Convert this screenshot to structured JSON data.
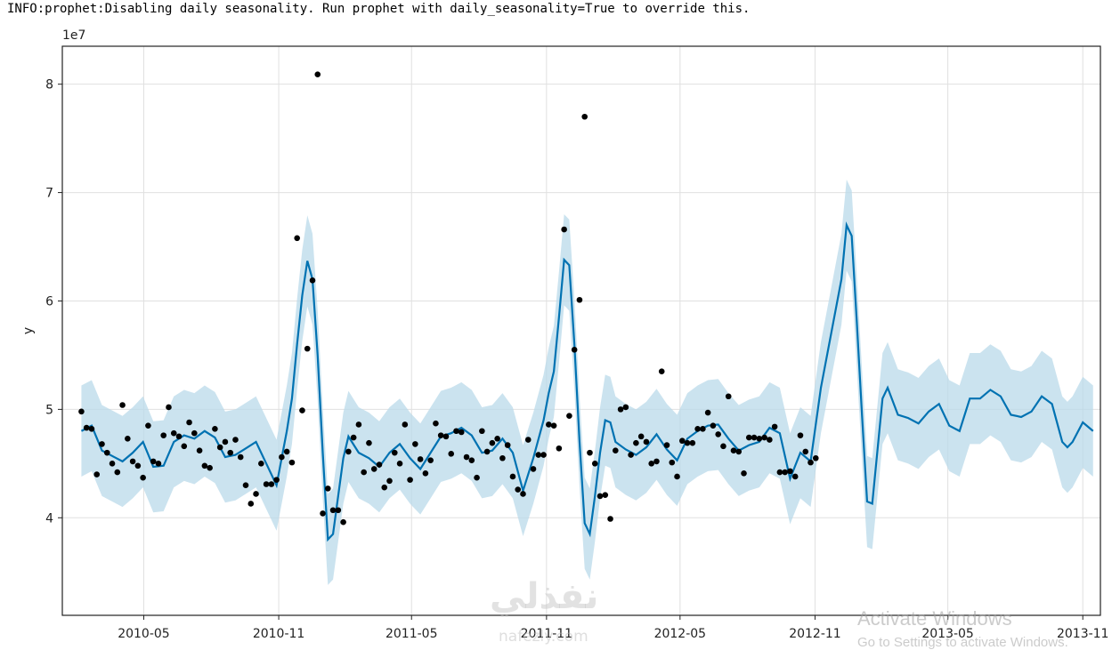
{
  "console": {
    "message": "INFO:prophet:Disabling daily seasonality. Run prophet with daily_seasonality=True to override this."
  },
  "watermark": {
    "activate_title": "Activate Windows",
    "activate_sub": "Go to Settings to activate Windows.",
    "logo_text": "نفذلي",
    "logo_url": "nafezly.com"
  },
  "colors": {
    "forecast_line": "#0072B2",
    "interval_fill": "#b9d9ea",
    "points": "#000000",
    "grid": "#e0e0e0"
  },
  "chart_data": {
    "type": "line",
    "ylabel": "y",
    "y_multiplier_label": "1e7",
    "ylim": [
      3.1,
      8.35
    ],
    "yticks": [
      4,
      5,
      6,
      7,
      8
    ],
    "xlim": [
      "2010-01-10",
      "2013-11-25"
    ],
    "xticks": [
      {
        "date": "2010-05-01",
        "label": "2010-05"
      },
      {
        "date": "2010-11-01",
        "label": "2010-11"
      },
      {
        "date": "2011-05-01",
        "label": "2011-05"
      },
      {
        "date": "2011-11-01",
        "label": "2011-11"
      },
      {
        "date": "2012-05-01",
        "label": "2012-05"
      },
      {
        "date": "2012-11-01",
        "label": "2012-11"
      },
      {
        "date": "2013-05-01",
        "label": "2013-05"
      },
      {
        "date": "2013-11-01",
        "label": "2013-11"
      }
    ],
    "grid": true,
    "series": [
      {
        "kind": "forecast",
        "points": [
          [
            "2010-02-05",
            4.8
          ],
          [
            "2010-02-19",
            4.85
          ],
          [
            "2010-03-05",
            4.62
          ],
          [
            "2010-03-19",
            4.57
          ],
          [
            "2010-04-02",
            4.52
          ],
          [
            "2010-04-16",
            4.6
          ],
          [
            "2010-04-30",
            4.7
          ],
          [
            "2010-05-14",
            4.47
          ],
          [
            "2010-05-28",
            4.48
          ],
          [
            "2010-06-11",
            4.7
          ],
          [
            "2010-06-25",
            4.76
          ],
          [
            "2010-07-09",
            4.73
          ],
          [
            "2010-07-23",
            4.8
          ],
          [
            "2010-08-06",
            4.74
          ],
          [
            "2010-08-20",
            4.56
          ],
          [
            "2010-09-03",
            4.58
          ],
          [
            "2010-09-17",
            4.64
          ],
          [
            "2010-10-01",
            4.7
          ],
          [
            "2010-10-15",
            4.5
          ],
          [
            "2010-10-29",
            4.3
          ],
          [
            "2010-11-12",
            4.8
          ],
          [
            "2010-11-19",
            5.1
          ],
          [
            "2010-11-26",
            5.6
          ],
          [
            "2010-12-03",
            6.05
          ],
          [
            "2010-12-10",
            6.37
          ],
          [
            "2010-12-17",
            6.2
          ],
          [
            "2010-12-24",
            5.5
          ],
          [
            "2010-12-31",
            4.6
          ],
          [
            "2011-01-07",
            3.8
          ],
          [
            "2011-01-14",
            3.85
          ],
          [
            "2011-01-21",
            4.2
          ],
          [
            "2011-01-28",
            4.55
          ],
          [
            "2011-02-04",
            4.75
          ],
          [
            "2011-02-18",
            4.6
          ],
          [
            "2011-03-04",
            4.55
          ],
          [
            "2011-03-18",
            4.47
          ],
          [
            "2011-04-01",
            4.6
          ],
          [
            "2011-04-15",
            4.68
          ],
          [
            "2011-04-29",
            4.55
          ],
          [
            "2011-05-13",
            4.45
          ],
          [
            "2011-05-27",
            4.6
          ],
          [
            "2011-06-10",
            4.75
          ],
          [
            "2011-06-24",
            4.78
          ],
          [
            "2011-07-08",
            4.83
          ],
          [
            "2011-07-22",
            4.76
          ],
          [
            "2011-08-05",
            4.6
          ],
          [
            "2011-08-19",
            4.62
          ],
          [
            "2011-09-02",
            4.73
          ],
          [
            "2011-09-16",
            4.6
          ],
          [
            "2011-09-30",
            4.25
          ],
          [
            "2011-10-14",
            4.55
          ],
          [
            "2011-10-28",
            4.9
          ],
          [
            "2011-11-04",
            5.15
          ],
          [
            "2011-11-11",
            5.35
          ],
          [
            "2011-11-18",
            5.85
          ],
          [
            "2011-11-25",
            6.38
          ],
          [
            "2011-12-02",
            6.33
          ],
          [
            "2011-12-09",
            5.6
          ],
          [
            "2011-12-16",
            4.7
          ],
          [
            "2011-12-23",
            3.95
          ],
          [
            "2011-12-30",
            3.85
          ],
          [
            "2012-01-06",
            4.2
          ],
          [
            "2012-01-13",
            4.6
          ],
          [
            "2012-01-20",
            4.9
          ],
          [
            "2012-01-27",
            4.88
          ],
          [
            "2012-02-03",
            4.7
          ],
          [
            "2012-02-17",
            4.63
          ],
          [
            "2012-03-02",
            4.58
          ],
          [
            "2012-03-16",
            4.65
          ],
          [
            "2012-03-30",
            4.77
          ],
          [
            "2012-04-13",
            4.63
          ],
          [
            "2012-04-27",
            4.53
          ],
          [
            "2012-05-11",
            4.73
          ],
          [
            "2012-05-25",
            4.8
          ],
          [
            "2012-06-08",
            4.85
          ],
          [
            "2012-06-22",
            4.86
          ],
          [
            "2012-07-06",
            4.73
          ],
          [
            "2012-07-20",
            4.62
          ],
          [
            "2012-08-03",
            4.67
          ],
          [
            "2012-08-17",
            4.7
          ],
          [
            "2012-08-31",
            4.83
          ],
          [
            "2012-09-14",
            4.78
          ],
          [
            "2012-09-28",
            4.36
          ],
          [
            "2012-10-12",
            4.6
          ],
          [
            "2012-10-26",
            4.52
          ],
          [
            "2012-11-09",
            5.2
          ],
          [
            "2012-11-23",
            5.7
          ],
          [
            "2012-12-07",
            6.2
          ],
          [
            "2012-12-14",
            6.7
          ],
          [
            "2012-12-21",
            6.6
          ],
          [
            "2012-12-28",
            5.8
          ],
          [
            "2013-01-04",
            4.95
          ],
          [
            "2013-01-11",
            4.15
          ],
          [
            "2013-01-18",
            4.13
          ],
          [
            "2013-02-01",
            5.1
          ],
          [
            "2013-02-08",
            5.2
          ],
          [
            "2013-02-22",
            4.95
          ],
          [
            "2013-03-08",
            4.92
          ],
          [
            "2013-03-22",
            4.87
          ],
          [
            "2013-04-05",
            4.98
          ],
          [
            "2013-04-19",
            5.05
          ],
          [
            "2013-05-03",
            4.85
          ],
          [
            "2013-05-17",
            4.8
          ],
          [
            "2013-05-31",
            5.1
          ],
          [
            "2013-06-14",
            5.1
          ],
          [
            "2013-06-28",
            5.18
          ],
          [
            "2013-07-12",
            5.12
          ],
          [
            "2013-07-26",
            4.95
          ],
          [
            "2013-08-09",
            4.93
          ],
          [
            "2013-08-23",
            4.98
          ],
          [
            "2013-09-06",
            5.12
          ],
          [
            "2013-09-20",
            5.05
          ],
          [
            "2013-10-04",
            4.7
          ],
          [
            "2013-10-11",
            4.65
          ],
          [
            "2013-10-18",
            4.7
          ],
          [
            "2013-11-01",
            4.88
          ],
          [
            "2013-11-15",
            4.8
          ]
        ],
        "interval_half_width": 0.42
      },
      {
        "kind": "observed",
        "points": [
          [
            "2010-02-05",
            4.98
          ],
          [
            "2010-02-12",
            4.83
          ],
          [
            "2010-02-19",
            4.82
          ],
          [
            "2010-02-26",
            4.4
          ],
          [
            "2010-03-05",
            4.68
          ],
          [
            "2010-03-12",
            4.6
          ],
          [
            "2010-03-19",
            4.5
          ],
          [
            "2010-03-26",
            4.42
          ],
          [
            "2010-04-02",
            5.04
          ],
          [
            "2010-04-09",
            4.73
          ],
          [
            "2010-04-16",
            4.52
          ],
          [
            "2010-04-23",
            4.48
          ],
          [
            "2010-04-30",
            4.37
          ],
          [
            "2010-05-07",
            4.85
          ],
          [
            "2010-05-14",
            4.52
          ],
          [
            "2010-05-21",
            4.5
          ],
          [
            "2010-05-28",
            4.76
          ],
          [
            "2010-06-04",
            5.02
          ],
          [
            "2010-06-11",
            4.78
          ],
          [
            "2010-06-18",
            4.75
          ],
          [
            "2010-06-25",
            4.66
          ],
          [
            "2010-07-02",
            4.88
          ],
          [
            "2010-07-09",
            4.78
          ],
          [
            "2010-07-16",
            4.62
          ],
          [
            "2010-07-23",
            4.48
          ],
          [
            "2010-07-30",
            4.46
          ],
          [
            "2010-08-06",
            4.82
          ],
          [
            "2010-08-13",
            4.65
          ],
          [
            "2010-08-20",
            4.7
          ],
          [
            "2010-08-27",
            4.6
          ],
          [
            "2010-09-03",
            4.72
          ],
          [
            "2010-09-10",
            4.56
          ],
          [
            "2010-09-17",
            4.3
          ],
          [
            "2010-09-24",
            4.13
          ],
          [
            "2010-10-01",
            4.22
          ],
          [
            "2010-10-08",
            4.5
          ],
          [
            "2010-10-15",
            4.31
          ],
          [
            "2010-10-22",
            4.31
          ],
          [
            "2010-10-29",
            4.35
          ],
          [
            "2010-11-05",
            4.56
          ],
          [
            "2010-11-12",
            4.61
          ],
          [
            "2010-11-19",
            4.51
          ],
          [
            "2010-11-26",
            6.58
          ],
          [
            "2010-12-03",
            4.99
          ],
          [
            "2010-12-10",
            5.56
          ],
          [
            "2010-12-17",
            6.19
          ],
          [
            "2010-12-24",
            8.09
          ],
          [
            "2010-12-31",
            4.04
          ],
          [
            "2011-01-07",
            4.27
          ],
          [
            "2011-01-14",
            4.07
          ],
          [
            "2011-01-21",
            4.07
          ],
          [
            "2011-01-28",
            3.96
          ],
          [
            "2011-02-04",
            4.61
          ],
          [
            "2011-02-11",
            4.74
          ],
          [
            "2011-02-18",
            4.86
          ],
          [
            "2011-02-25",
            4.42
          ],
          [
            "2011-03-04",
            4.69
          ],
          [
            "2011-03-11",
            4.45
          ],
          [
            "2011-03-18",
            4.49
          ],
          [
            "2011-03-25",
            4.28
          ],
          [
            "2011-04-01",
            4.34
          ],
          [
            "2011-04-08",
            4.6
          ],
          [
            "2011-04-15",
            4.5
          ],
          [
            "2011-04-22",
            4.86
          ],
          [
            "2011-04-29",
            4.35
          ],
          [
            "2011-05-06",
            4.68
          ],
          [
            "2011-05-13",
            4.54
          ],
          [
            "2011-05-20",
            4.41
          ],
          [
            "2011-05-27",
            4.53
          ],
          [
            "2011-06-03",
            4.87
          ],
          [
            "2011-06-10",
            4.76
          ],
          [
            "2011-06-17",
            4.75
          ],
          [
            "2011-06-24",
            4.59
          ],
          [
            "2011-07-01",
            4.8
          ],
          [
            "2011-07-08",
            4.79
          ],
          [
            "2011-07-15",
            4.56
          ],
          [
            "2011-07-22",
            4.53
          ],
          [
            "2011-07-29",
            4.37
          ],
          [
            "2011-08-05",
            4.8
          ],
          [
            "2011-08-12",
            4.61
          ],
          [
            "2011-08-19",
            4.69
          ],
          [
            "2011-08-26",
            4.73
          ],
          [
            "2011-09-02",
            4.55
          ],
          [
            "2011-09-09",
            4.67
          ],
          [
            "2011-09-16",
            4.38
          ],
          [
            "2011-09-23",
            4.26
          ],
          [
            "2011-09-30",
            4.22
          ],
          [
            "2011-10-07",
            4.72
          ],
          [
            "2011-10-14",
            4.45
          ],
          [
            "2011-10-21",
            4.58
          ],
          [
            "2011-10-28",
            4.58
          ],
          [
            "2011-11-04",
            4.86
          ],
          [
            "2011-11-11",
            4.85
          ],
          [
            "2011-11-18",
            4.64
          ],
          [
            "2011-11-25",
            6.66
          ],
          [
            "2011-12-02",
            4.94
          ],
          [
            "2011-12-09",
            5.55
          ],
          [
            "2011-12-16",
            6.01
          ],
          [
            "2011-12-23",
            7.7
          ],
          [
            "2011-12-30",
            4.6
          ],
          [
            "2012-01-06",
            4.5
          ],
          [
            "2012-01-13",
            4.2
          ],
          [
            "2012-01-20",
            4.21
          ],
          [
            "2012-01-27",
            3.99
          ],
          [
            "2012-02-03",
            4.62
          ],
          [
            "2012-02-10",
            5.0
          ],
          [
            "2012-02-17",
            5.02
          ],
          [
            "2012-02-24",
            4.58
          ],
          [
            "2012-03-02",
            4.69
          ],
          [
            "2012-03-09",
            4.75
          ],
          [
            "2012-03-16",
            4.7
          ],
          [
            "2012-03-23",
            4.5
          ],
          [
            "2012-03-30",
            4.52
          ],
          [
            "2012-04-06",
            5.35
          ],
          [
            "2012-04-13",
            4.67
          ],
          [
            "2012-04-20",
            4.51
          ],
          [
            "2012-04-27",
            4.38
          ],
          [
            "2012-05-04",
            4.71
          ],
          [
            "2012-05-11",
            4.69
          ],
          [
            "2012-05-18",
            4.69
          ],
          [
            "2012-05-25",
            4.82
          ],
          [
            "2012-06-01",
            4.82
          ],
          [
            "2012-06-08",
            4.97
          ],
          [
            "2012-06-15",
            4.85
          ],
          [
            "2012-06-22",
            4.77
          ],
          [
            "2012-06-29",
            4.66
          ],
          [
            "2012-07-06",
            5.12
          ],
          [
            "2012-07-13",
            4.62
          ],
          [
            "2012-07-20",
            4.61
          ],
          [
            "2012-07-27",
            4.41
          ],
          [
            "2012-08-03",
            4.74
          ],
          [
            "2012-08-10",
            4.74
          ],
          [
            "2012-08-17",
            4.73
          ],
          [
            "2012-08-24",
            4.74
          ],
          [
            "2012-08-31",
            4.72
          ],
          [
            "2012-09-07",
            4.84
          ],
          [
            "2012-09-14",
            4.42
          ],
          [
            "2012-09-21",
            4.42
          ],
          [
            "2012-09-28",
            4.43
          ],
          [
            "2012-10-05",
            4.38
          ],
          [
            "2012-10-12",
            4.76
          ],
          [
            "2012-10-19",
            4.61
          ],
          [
            "2012-10-26",
            4.51
          ],
          [
            "2012-11-02",
            4.55
          ]
        ]
      }
    ]
  }
}
